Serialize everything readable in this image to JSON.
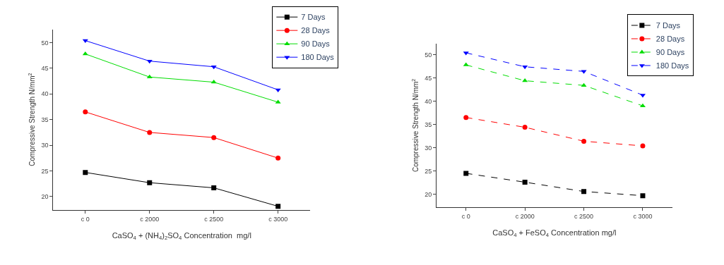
{
  "chart_data": [
    {
      "type": "line",
      "categories": [
        "c 0",
        "c 2000",
        "c 2500",
        "c 3000"
      ],
      "xlabel": "CaSO$_{4}$ + (NH$_{4}$)$_{2}$SO$_{4}$ Concentration  mg/l",
      "ylabel": "Compressive Strength N/mm$^{2}$",
      "ylim": [
        17.4,
        52.6
      ],
      "yticks": [
        20,
        25,
        30,
        35,
        40,
        45,
        50
      ],
      "legend": "top right",
      "line_style": "solid",
      "series": [
        {
          "name": "7 Days",
          "color": "#000000",
          "marker": "square",
          "values": [
            24.7,
            22.7,
            21.7,
            18.1
          ]
        },
        {
          "name": "28 Days",
          "color": "#ff0000",
          "marker": "circle",
          "values": [
            36.5,
            32.5,
            31.5,
            27.5
          ]
        },
        {
          "name": "90 Days",
          "color": "#00dd00",
          "marker": "triangle",
          "values": [
            47.8,
            43.3,
            42.3,
            38.4
          ]
        },
        {
          "name": "180 Days",
          "color": "#0000ff",
          "marker": "triangle-down",
          "values": [
            50.4,
            46.4,
            45.3,
            40.8
          ]
        }
      ]
    },
    {
      "type": "line",
      "categories": [
        "c 0",
        "c 2000",
        "c 2500",
        "c 3000"
      ],
      "xlabel": "CaSO$_{4}$ + FeSO$_{4}$ Concentration mg/l",
      "ylabel": "Compressive Strength N/mm$^{2}$",
      "ylim": [
        17.2,
        52.4
      ],
      "yticks": [
        20,
        25,
        30,
        35,
        40,
        45,
        50
      ],
      "legend": "top right",
      "line_style": "dashed",
      "series": [
        {
          "name": "7 Days",
          "color": "#000000",
          "marker": "square",
          "values": [
            24.5,
            22.6,
            20.6,
            19.7
          ]
        },
        {
          "name": "28 Days",
          "color": "#ff0000",
          "marker": "circle",
          "values": [
            36.5,
            34.4,
            31.4,
            30.4
          ]
        },
        {
          "name": "90 Days",
          "color": "#00dd00",
          "marker": "triangle",
          "values": [
            47.8,
            44.4,
            43.4,
            39.0
          ]
        },
        {
          "name": "180 Days",
          "color": "#0000ff",
          "marker": "triangle-down",
          "values": [
            50.4,
            47.4,
            46.4,
            41.3
          ]
        }
      ]
    }
  ]
}
